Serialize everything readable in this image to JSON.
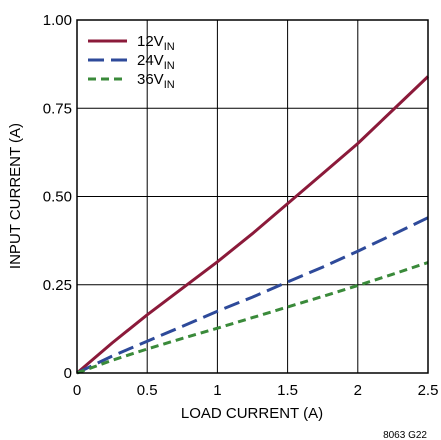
{
  "chart_data": {
    "type": "line",
    "xlabel": "LOAD CURRENT (A)",
    "ylabel": "INPUT CURRENT (A)",
    "xlim": [
      0,
      2.5
    ],
    "ylim": [
      0,
      1.0
    ],
    "x_ticks": [
      0,
      0.5,
      1,
      1.5,
      2,
      2.5
    ],
    "x_tick_labels": [
      "0",
      "0.5",
      "1",
      "1.5",
      "2",
      "2.5"
    ],
    "y_ticks": [
      0,
      0.25,
      0.5,
      0.75,
      1.0
    ],
    "y_tick_labels": [
      "0",
      "0.25",
      "0.50",
      "0.75",
      "1.00"
    ],
    "grid": true,
    "legend_position": "top-left",
    "figure_code": "8063 G22",
    "series": [
      {
        "name": "12V",
        "name_subscript": "IN",
        "color": "#8B1A3A",
        "dash": "solid",
        "x": [
          0,
          0.25,
          0.5,
          0.75,
          1.0,
          1.25,
          1.5,
          1.75,
          2.0,
          2.25,
          2.5
        ],
        "y": [
          0,
          0.085,
          0.165,
          0.24,
          0.315,
          0.395,
          0.48,
          0.565,
          0.65,
          0.745,
          0.84
        ]
      },
      {
        "name": "24V",
        "name_subscript": "IN",
        "color": "#2E4A9A",
        "dash": "long",
        "x": [
          0,
          0.25,
          0.5,
          0.75,
          1.0,
          1.25,
          1.5,
          1.75,
          2.0,
          2.25,
          2.5
        ],
        "y": [
          0,
          0.048,
          0.09,
          0.132,
          0.175,
          0.215,
          0.258,
          0.3,
          0.345,
          0.392,
          0.44
        ]
      },
      {
        "name": "36V",
        "name_subscript": "IN",
        "color": "#3A8A3A",
        "dash": "short",
        "x": [
          0,
          0.25,
          0.5,
          0.75,
          1.0,
          1.25,
          1.5,
          1.75,
          2.0,
          2.25,
          2.5
        ],
        "y": [
          0,
          0.036,
          0.068,
          0.098,
          0.127,
          0.157,
          0.187,
          0.217,
          0.248,
          0.28,
          0.313
        ]
      }
    ]
  }
}
